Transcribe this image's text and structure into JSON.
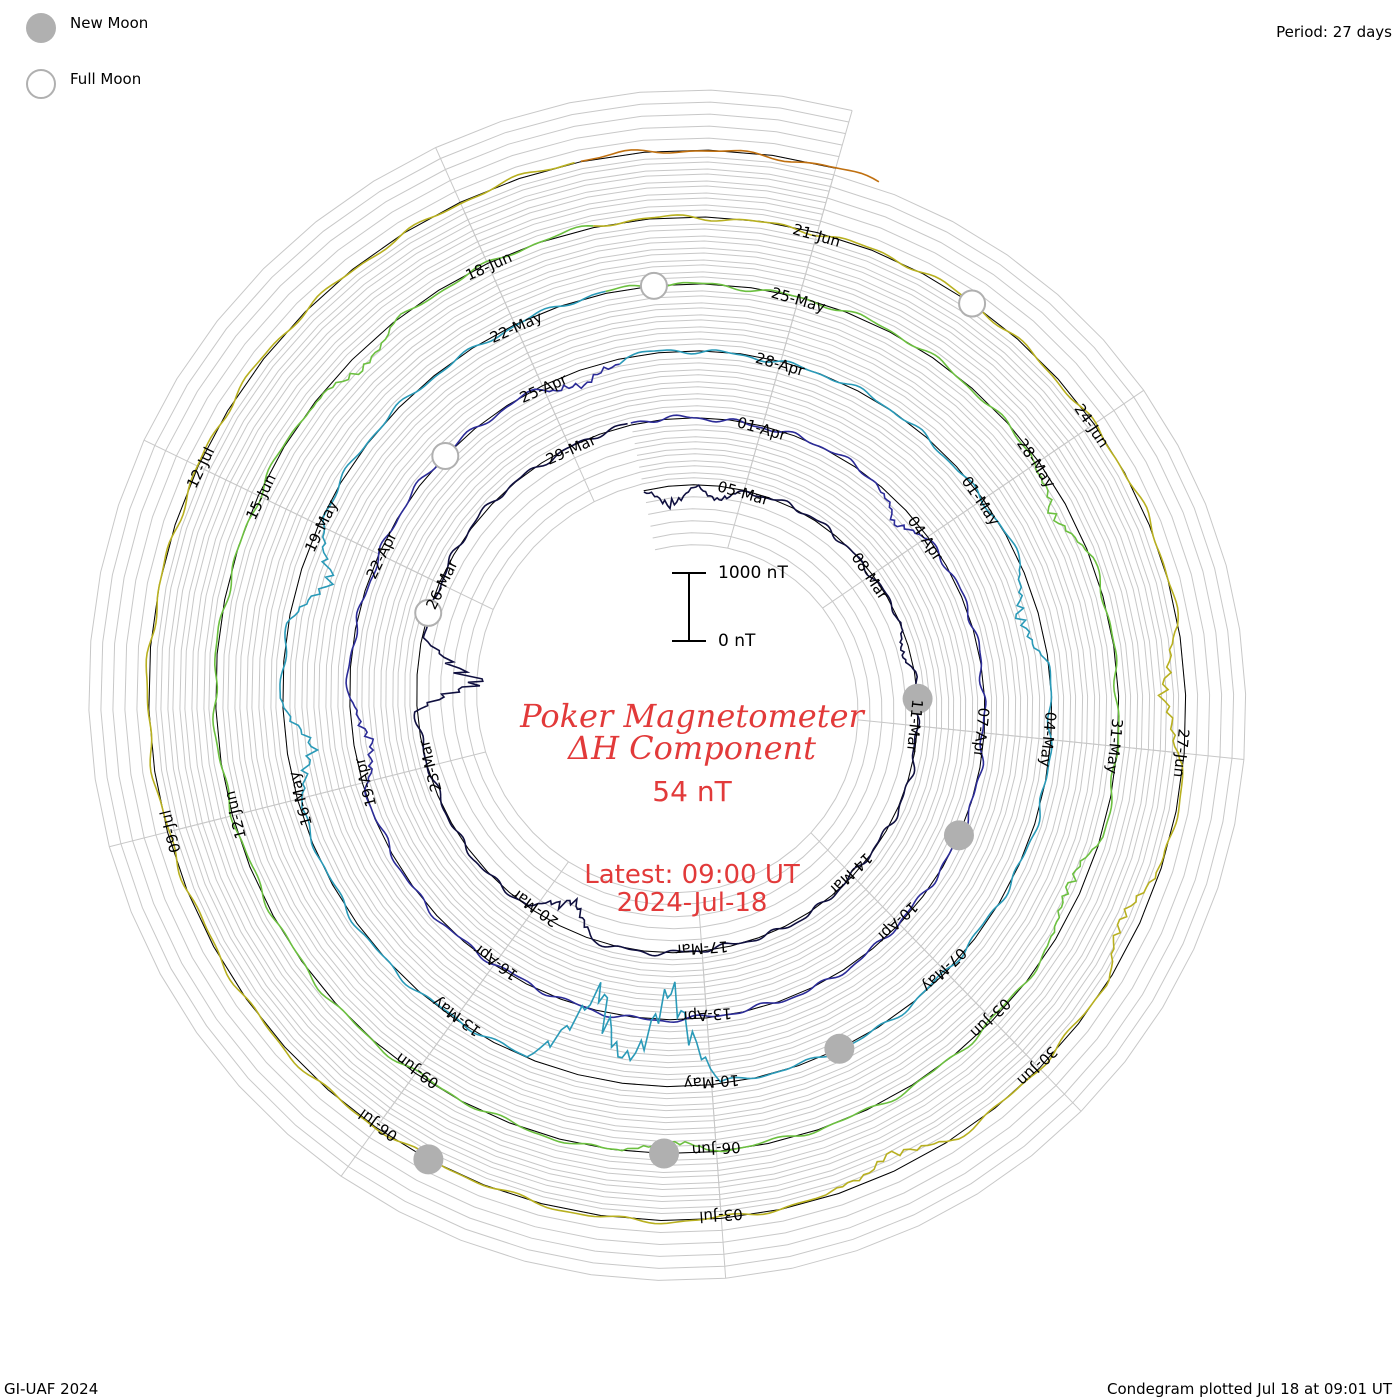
{
  "legend": {
    "new_moon": {
      "label": "New Moon",
      "color": "#b0b0b0"
    },
    "full_moon": {
      "label": "Full Moon",
      "color": "#ffffff",
      "stroke": "#b0b0b0"
    }
  },
  "period_text": "Period: 27 days",
  "footer_left": "GI-UAF 2024",
  "footer_right": "Condegram plotted Jul 18 at 09:01 UT",
  "title": {
    "line1": "Poker Magnetometer",
    "line2": "ΔH Component",
    "value": "54 nT",
    "latest_line1": "Latest: 09:00 UT",
    "latest_line2": "2024-Jul-18"
  },
  "scale_bar": {
    "top_label": "1000 nT",
    "bottom_label": "0 nT"
  },
  "chart_data": {
    "type": "line",
    "title": "Poker Magnetometer ΔH Component",
    "period_days": 27,
    "start_date": "2024-03-03",
    "end_date": "2024-07-18",
    "units": "nT",
    "scale_bar_nT": [
      0,
      1000
    ],
    "latest_value_nT": 54,
    "date_labels": [
      "05-Mar",
      "08-Mar",
      "11-Mar",
      "14-Mar",
      "17-Mar",
      "20-Mar",
      "23-Mar",
      "26-Mar",
      "29-Mar",
      "01-Apr",
      "04-Apr",
      "07-Apr",
      "10-Apr",
      "13-Apr",
      "16-Apr",
      "19-Apr",
      "22-Apr",
      "25-Apr",
      "28-Apr",
      "01-May",
      "04-May",
      "07-May",
      "10-May",
      "13-May",
      "16-May",
      "19-May",
      "22-May",
      "25-May",
      "28-May",
      "31-May",
      "03-Jun",
      "06-Jun",
      "09-Jun",
      "12-Jun",
      "15-Jun",
      "18-Jun",
      "21-Jun",
      "24-Jun",
      "27-Jun",
      "30-Jun",
      "03-Jul",
      "06-Jul",
      "09-Jul",
      "12-Jul"
    ],
    "series_colors": [
      "#101040",
      "#2c2c98",
      "#2a9ab8",
      "#6cc040",
      "#b8b020",
      "#c07010",
      "#b82010"
    ],
    "new_moons": [
      {
        "date": "2024-03-10"
      },
      {
        "date": "2024-04-08"
      },
      {
        "date": "2024-05-08"
      },
      {
        "date": "2024-06-06"
      },
      {
        "date": "2024-07-05"
      }
    ],
    "full_moons": [
      {
        "date": "2024-03-25"
      },
      {
        "date": "2024-04-23"
      },
      {
        "date": "2024-05-23"
      },
      {
        "date": "2024-06-22"
      }
    ],
    "disturbances": [
      {
        "date": "2024-03-03",
        "peak_nT": -350
      },
      {
        "date": "2024-03-04",
        "peak_nT": -200
      },
      {
        "date": "2024-03-09",
        "peak_nT": -150
      },
      {
        "date": "2024-03-19",
        "peak_nT": -500
      },
      {
        "date": "2024-03-24",
        "peak_nT": -1100
      },
      {
        "date": "2024-04-03",
        "peak_nT": -250
      },
      {
        "date": "2024-04-19",
        "peak_nT": -350
      },
      {
        "date": "2024-04-25",
        "peak_nT": -300
      },
      {
        "date": "2024-05-02",
        "peak_nT": -400
      },
      {
        "date": "2024-05-10",
        "peak_nT": -1700
      },
      {
        "date": "2024-05-11",
        "peak_nT": -1500
      },
      {
        "date": "2024-05-16",
        "peak_nT": -450
      },
      {
        "date": "2024-05-18",
        "peak_nT": -500
      },
      {
        "date": "2024-05-28",
        "peak_nT": -300
      },
      {
        "date": "2024-06-01",
        "peak_nT": -300
      },
      {
        "date": "2024-06-06",
        "peak_nT": -200
      },
      {
        "date": "2024-06-16",
        "peak_nT": -250
      },
      {
        "date": "2024-06-26",
        "peak_nT": -400
      },
      {
        "date": "2024-06-28",
        "peak_nT": -350
      },
      {
        "date": "2024-07-01",
        "peak_nT": -300
      }
    ]
  }
}
